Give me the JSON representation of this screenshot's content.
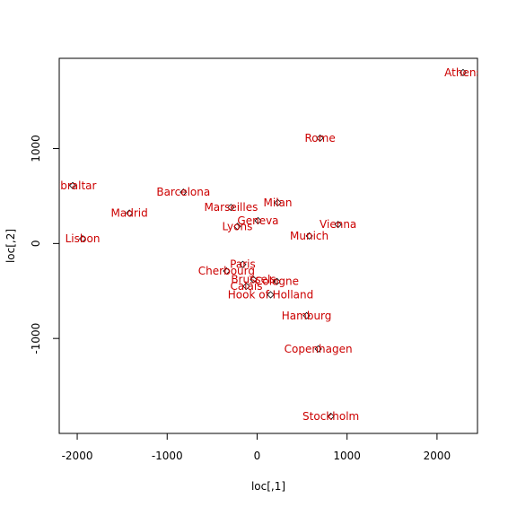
{
  "chart_data": {
    "type": "scatter",
    "title": "",
    "xlabel": "loc[,1]",
    "ylabel": "loc[,2]",
    "xlim": [
      -2200,
      2450
    ],
    "ylim": [
      -2000,
      1950
    ],
    "x_ticks": [
      -2000,
      -1000,
      0,
      1000,
      2000
    ],
    "x_tick_labels": [
      "-2000",
      "-1000",
      "0",
      "1000",
      "2000"
    ],
    "y_ticks": [
      -1000,
      0,
      1000
    ],
    "y_tick_labels": [
      "-1000",
      "0",
      "1000"
    ],
    "grid": false,
    "legend": "none",
    "label_color": "#cc0000",
    "marker": "open-diamond",
    "points": [
      {
        "label": "Athens",
        "x": 2290,
        "y": 1800
      },
      {
        "label": "Rome",
        "x": 700,
        "y": 1110
      },
      {
        "label": "Gibraltar",
        "x": -2050,
        "y": 610
      },
      {
        "label": "Barcelona",
        "x": -820,
        "y": 540
      },
      {
        "label": "Madrid",
        "x": -1420,
        "y": 320
      },
      {
        "label": "Marseilles",
        "x": -290,
        "y": 380
      },
      {
        "label": "Milan",
        "x": 230,
        "y": 430
      },
      {
        "label": "Geneva",
        "x": 10,
        "y": 240
      },
      {
        "label": "Lyons",
        "x": -220,
        "y": 180
      },
      {
        "label": "Vienna",
        "x": 900,
        "y": 200
      },
      {
        "label": "Munich",
        "x": 580,
        "y": 80
      },
      {
        "label": "Lisbon",
        "x": -1940,
        "y": 50
      },
      {
        "label": "Paris",
        "x": -160,
        "y": -220
      },
      {
        "label": "Cherbourg",
        "x": -340,
        "y": -290
      },
      {
        "label": "Brussels",
        "x": -40,
        "y": -380
      },
      {
        "label": "Cologne",
        "x": 220,
        "y": -400
      },
      {
        "label": "Calais",
        "x": -120,
        "y": -450
      },
      {
        "label": "Hook of Holland",
        "x": 150,
        "y": -540
      },
      {
        "label": "Hamburg",
        "x": 550,
        "y": -760
      },
      {
        "label": "Copenhagen",
        "x": 680,
        "y": -1110
      },
      {
        "label": "Stockholm",
        "x": 820,
        "y": -1820
      }
    ]
  }
}
